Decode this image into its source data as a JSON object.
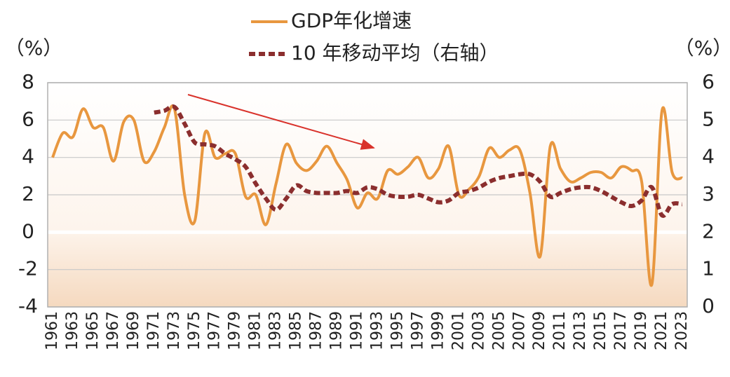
{
  "chart_data": {
    "type": "line",
    "ylabel": "（%）",
    "y2label": "（%）",
    "categories": [
      "1961",
      null,
      "1963",
      null,
      "1965",
      null,
      "1967",
      null,
      "1969",
      null,
      "1971",
      null,
      "1973",
      null,
      "1975",
      null,
      "1977",
      null,
      "1979",
      null,
      "1981",
      null,
      "1983",
      null,
      "1985",
      null,
      "1987",
      null,
      "1989",
      null,
      "1991",
      null,
      "1993",
      null,
      "1995",
      null,
      "1997",
      null,
      "1999",
      null,
      "2001",
      null,
      "2003",
      null,
      "2005",
      null,
      "2007",
      null,
      "2009",
      null,
      "2011",
      null,
      "2013",
      null,
      "2015",
      null,
      "2017",
      null,
      "2019",
      null,
      "2021",
      null,
      "2023"
    ],
    "series": [
      {
        "name": "GDP年化增速",
        "color": "#e8973f",
        "values": [
          4.0,
          5.3,
          5.1,
          6.6,
          5.6,
          5.6,
          3.8,
          5.9,
          6.0,
          3.8,
          4.3,
          5.6,
          6.6,
          2.0,
          0.6,
          5.3,
          4.0,
          4.2,
          4.2,
          1.9,
          2.0,
          0.4,
          2.6,
          4.7,
          3.7,
          3.3,
          3.8,
          4.6,
          3.7,
          2.8,
          1.3,
          2.1,
          1.8,
          3.3,
          3.1,
          3.5,
          4.0,
          2.9,
          3.4,
          4.6,
          2.0,
          2.3,
          3.0,
          4.5,
          4.0,
          4.4,
          4.4,
          2.1,
          -1.3,
          4.6,
          3.4,
          2.7,
          2.9,
          3.2,
          3.2,
          2.9,
          3.5,
          3.3,
          2.7,
          -2.8,
          6.5,
          3.2,
          2.9
        ]
      },
      {
        "name": "10 年移动平均（右轴）",
        "color": "#8b2e2e",
        "axis": "y2",
        "values": [
          null,
          null,
          null,
          null,
          null,
          null,
          null,
          null,
          null,
          null,
          5.2,
          5.25,
          5.35,
          4.9,
          4.4,
          4.35,
          4.3,
          4.1,
          3.95,
          3.75,
          3.3,
          2.9,
          2.6,
          2.9,
          3.25,
          3.1,
          3.05,
          3.05,
          3.05,
          3.1,
          3.05,
          3.2,
          3.15,
          3.0,
          2.95,
          2.95,
          3.0,
          2.9,
          2.8,
          2.85,
          3.05,
          3.1,
          3.2,
          3.35,
          3.45,
          3.5,
          3.55,
          3.55,
          3.35,
          2.95,
          3.05,
          3.15,
          3.2,
          3.2,
          3.1,
          2.95,
          2.8,
          2.7,
          2.85,
          3.2,
          2.45,
          2.75,
          2.75
        ]
      }
    ],
    "ylim": [
      -4,
      8
    ],
    "yticks": [
      -4,
      -2,
      0,
      2,
      4,
      6,
      8
    ],
    "y2lim": [
      0,
      6
    ],
    "y2ticks": [
      0,
      1,
      2,
      3,
      4,
      5,
      6
    ],
    "grid": true
  }
}
